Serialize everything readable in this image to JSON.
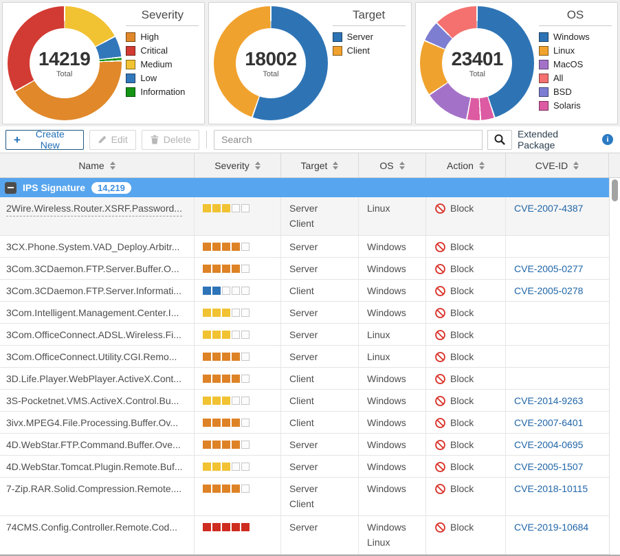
{
  "colors": {
    "accent_blue": "#2170B8",
    "group_header_bg": "#57A5EE",
    "link": "#2166A8",
    "block_red": "#D9342B"
  },
  "charts": [
    {
      "title": "Severity",
      "total": "14219",
      "total_label": "Total",
      "legend": [
        {
          "label": "High",
          "color": "#E0882A"
        },
        {
          "label": "Critical",
          "color": "#D23B33"
        },
        {
          "label": "Medium",
          "color": "#F1C232"
        },
        {
          "label": "Low",
          "color": "#3377BB"
        },
        {
          "label": "Information",
          "color": "#149414"
        }
      ],
      "slices": [
        {
          "color": "#F1C232",
          "pct": 17.2
        },
        {
          "color": "#3377BB",
          "pct": 6.1
        },
        {
          "color": "#149414",
          "pct": 1.0
        },
        {
          "color": "#E0882A",
          "pct": 42.5
        },
        {
          "color": "#D23B33",
          "pct": 33.2
        }
      ]
    },
    {
      "title": "Target",
      "total": "18002",
      "total_label": "Total",
      "legend": [
        {
          "label": "Server",
          "color": "#2E74B5"
        },
        {
          "label": "Client",
          "color": "#F0A22E"
        }
      ],
      "slices": [
        {
          "color": "#2E74B5",
          "pct": 55.3
        },
        {
          "color": "#F0A22E",
          "pct": 44.7
        }
      ]
    },
    {
      "title": "OS",
      "total": "23401",
      "total_label": "Total",
      "legend": [
        {
          "label": "Windows",
          "color": "#2E74B5"
        },
        {
          "label": "Linux",
          "color": "#F0A22E"
        },
        {
          "label": "MacOS",
          "color": "#A372C8"
        },
        {
          "label": "All",
          "color": "#F4716F"
        },
        {
          "label": "BSD",
          "color": "#7D7DD1"
        },
        {
          "label": "Solaris",
          "color": "#DC5BA2"
        }
      ],
      "slices": [
        {
          "color": "#2E74B5",
          "pct": 45.0
        },
        {
          "color": "#DC5BA2",
          "pct": 4.0
        },
        {
          "color": "#DC5BA2",
          "pct": 3.9
        },
        {
          "color": "#A372C8",
          "pct": 12.8
        },
        {
          "color": "#F0A22E",
          "pct": 15.8
        },
        {
          "color": "#7D7DD1",
          "pct": 6.0
        },
        {
          "color": "#F4716F",
          "pct": 12.5
        }
      ]
    }
  ],
  "toolbar": {
    "create_label": "Create New",
    "edit_label": "Edit",
    "delete_label": "Delete",
    "search_placeholder": "Search",
    "search_value": "",
    "extended_label": "Extended Package"
  },
  "table": {
    "columns": [
      {
        "label": "Name"
      },
      {
        "label": "Severity"
      },
      {
        "label": "Target"
      },
      {
        "label": "OS"
      },
      {
        "label": "Action"
      },
      {
        "label": "CVE-ID"
      }
    ],
    "group": {
      "label": "IPS Signature",
      "count": "14,219"
    },
    "severity_colors": {
      "critical": "#CE2C1F",
      "high": "#DE8226",
      "medium": "#F1C232",
      "low": "#2E74B8"
    },
    "rows": [
      {
        "name": "2Wire.Wireless.Router.XSRF.Password...",
        "severity": {
          "filled": 3,
          "level": "medium"
        },
        "target": [
          "Server",
          "Client"
        ],
        "os": [
          "Linux"
        ],
        "action": "Block",
        "cve": "CVE-2007-4387",
        "highlighted": true,
        "underline": true
      },
      {
        "name": "3CX.Phone.System.VAD_Deploy.Arbitr...",
        "severity": {
          "filled": 4,
          "level": "high"
        },
        "target": [
          "Server"
        ],
        "os": [
          "Windows"
        ],
        "action": "Block",
        "cve": ""
      },
      {
        "name": "3Com.3CDaemon.FTP.Server.Buffer.O...",
        "severity": {
          "filled": 4,
          "level": "high"
        },
        "target": [
          "Server"
        ],
        "os": [
          "Windows"
        ],
        "action": "Block",
        "cve": "CVE-2005-0277"
      },
      {
        "name": "3Com.3CDaemon.FTP.Server.Informati...",
        "severity": {
          "filled": 2,
          "level": "low"
        },
        "target": [
          "Client"
        ],
        "os": [
          "Windows"
        ],
        "action": "Block",
        "cve": "CVE-2005-0278"
      },
      {
        "name": "3Com.Intelligent.Management.Center.I...",
        "severity": {
          "filled": 3,
          "level": "medium"
        },
        "target": [
          "Server"
        ],
        "os": [
          "Windows"
        ],
        "action": "Block",
        "cve": ""
      },
      {
        "name": "3Com.OfficeConnect.ADSL.Wireless.Fi...",
        "severity": {
          "filled": 3,
          "level": "medium"
        },
        "target": [
          "Server"
        ],
        "os": [
          "Linux"
        ],
        "action": "Block",
        "cve": ""
      },
      {
        "name": "3Com.OfficeConnect.Utility.CGI.Remo...",
        "severity": {
          "filled": 4,
          "level": "high"
        },
        "target": [
          "Server"
        ],
        "os": [
          "Linux"
        ],
        "action": "Block",
        "cve": ""
      },
      {
        "name": "3D.Life.Player.WebPlayer.ActiveX.Cont...",
        "severity": {
          "filled": 4,
          "level": "high"
        },
        "target": [
          "Client"
        ],
        "os": [
          "Windows"
        ],
        "action": "Block",
        "cve": ""
      },
      {
        "name": "3S-Pocketnet.VMS.ActiveX.Control.Bu...",
        "severity": {
          "filled": 3,
          "level": "medium"
        },
        "target": [
          "Client"
        ],
        "os": [
          "Windows"
        ],
        "action": "Block",
        "cve": "CVE-2014-9263"
      },
      {
        "name": "3ivx.MPEG4.File.Processing.Buffer.Ov...",
        "severity": {
          "filled": 4,
          "level": "high"
        },
        "target": [
          "Client"
        ],
        "os": [
          "Windows"
        ],
        "action": "Block",
        "cve": "CVE-2007-6401"
      },
      {
        "name": "4D.WebStar.FTP.Command.Buffer.Ove...",
        "severity": {
          "filled": 4,
          "level": "high"
        },
        "target": [
          "Server"
        ],
        "os": [
          "Windows"
        ],
        "action": "Block",
        "cve": "CVE-2004-0695"
      },
      {
        "name": "4D.WebStar.Tomcat.Plugin.Remote.Buf...",
        "severity": {
          "filled": 3,
          "level": "medium"
        },
        "target": [
          "Server"
        ],
        "os": [
          "Windows"
        ],
        "action": "Block",
        "cve": "CVE-2005-1507"
      },
      {
        "name": "7-Zip.RAR.Solid.Compression.Remote....",
        "severity": {
          "filled": 4,
          "level": "high"
        },
        "target": [
          "Server",
          "Client"
        ],
        "os": [
          "Windows"
        ],
        "action": "Block",
        "cve": "CVE-2018-10115"
      },
      {
        "name": "74CMS.Config.Controller.Remote.Cod...",
        "severity": {
          "filled": 5,
          "level": "critical"
        },
        "target": [
          "Server"
        ],
        "os": [
          "Windows",
          "Linux"
        ],
        "action": "Block",
        "cve": "CVE-2019-10684"
      }
    ]
  }
}
